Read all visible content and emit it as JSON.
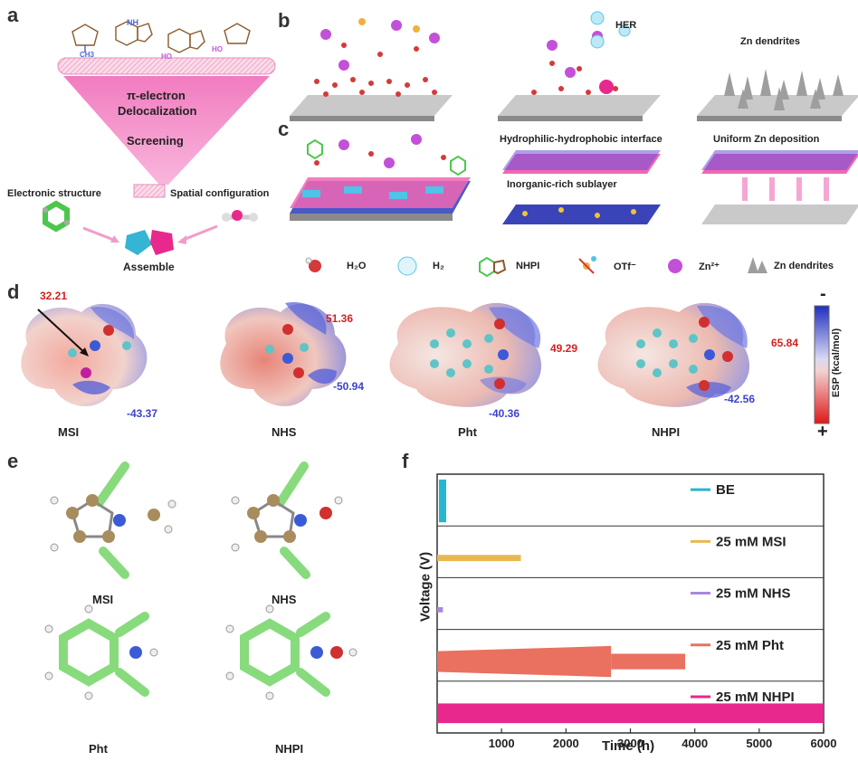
{
  "panels": {
    "a": {
      "label": "a",
      "funnel_line1": "π-electron",
      "funnel_line2": "Delocalization",
      "funnel_line3": "Screening",
      "left_label": "Electronic structure",
      "right_label": "Spatial configuration",
      "bottom_label": "Assemble",
      "mol_labels": [
        "NH",
        "CH3",
        "HO",
        "HO"
      ]
    },
    "b": {
      "label": "b",
      "her": "HER",
      "dendrites": "Zn dendrites"
    },
    "c": {
      "label": "c",
      "interface": "Hydrophilic-hydrophobic  interface",
      "sublayer": "Inorganic-rich sublayer",
      "uniform": "Uniform Zn deposition"
    },
    "legend": {
      "items": [
        "H₂O",
        "H₂",
        "NHPI",
        "OTf⁻",
        "Zn²⁺",
        "Zn dendrites"
      ]
    },
    "d": {
      "label": "d",
      "molecules": [
        {
          "name": "MSI",
          "pos": "32.21",
          "neg": "-43.37"
        },
        {
          "name": "NHS",
          "pos": "51.36",
          "neg": "-50.94"
        },
        {
          "name": "Pht",
          "pos": "49.29",
          "neg": "-40.36"
        },
        {
          "name": "NHPI",
          "pos": "65.84",
          "neg": "-42.56"
        }
      ],
      "colorbar_label": "ESP (kcal/mol)",
      "colorbar_top": "-",
      "colorbar_bottom": "+"
    },
    "e": {
      "label": "e",
      "names": [
        "MSI",
        "NHS",
        "Pht",
        "NHPI"
      ]
    },
    "f": {
      "label": "f",
      "ylabel": "Voltage (V)",
      "xlabel": "Time (h)",
      "xticks": [
        "1000",
        "2000",
        "3000",
        "4000",
        "5000",
        "6000"
      ]
    }
  },
  "chart_data": {
    "type": "line",
    "title": "",
    "xlabel": "Time (h)",
    "ylabel": "Voltage (V)",
    "xlim": [
      0,
      6000
    ],
    "xticks": [
      1000,
      2000,
      3000,
      4000,
      5000,
      6000
    ],
    "series": [
      {
        "name": "BE",
        "color": "#27b5cf",
        "end_h": 140
      },
      {
        "name": "25 mM MSI",
        "color": "#e8b850",
        "end_h": 1300
      },
      {
        "name": "25 mM NHS",
        "color": "#a887e0",
        "end_h": 90
      },
      {
        "name": "25 mM Pht",
        "color": "#ea7060",
        "end_h": 3850
      },
      {
        "name": "25 mM NHPI",
        "color": "#e8288c",
        "end_h": 6000
      }
    ]
  },
  "colors": {
    "pink": "#f067b4",
    "funnel": "#f58fc9",
    "red": "#d62020",
    "blue": "#3d44c8"
  }
}
